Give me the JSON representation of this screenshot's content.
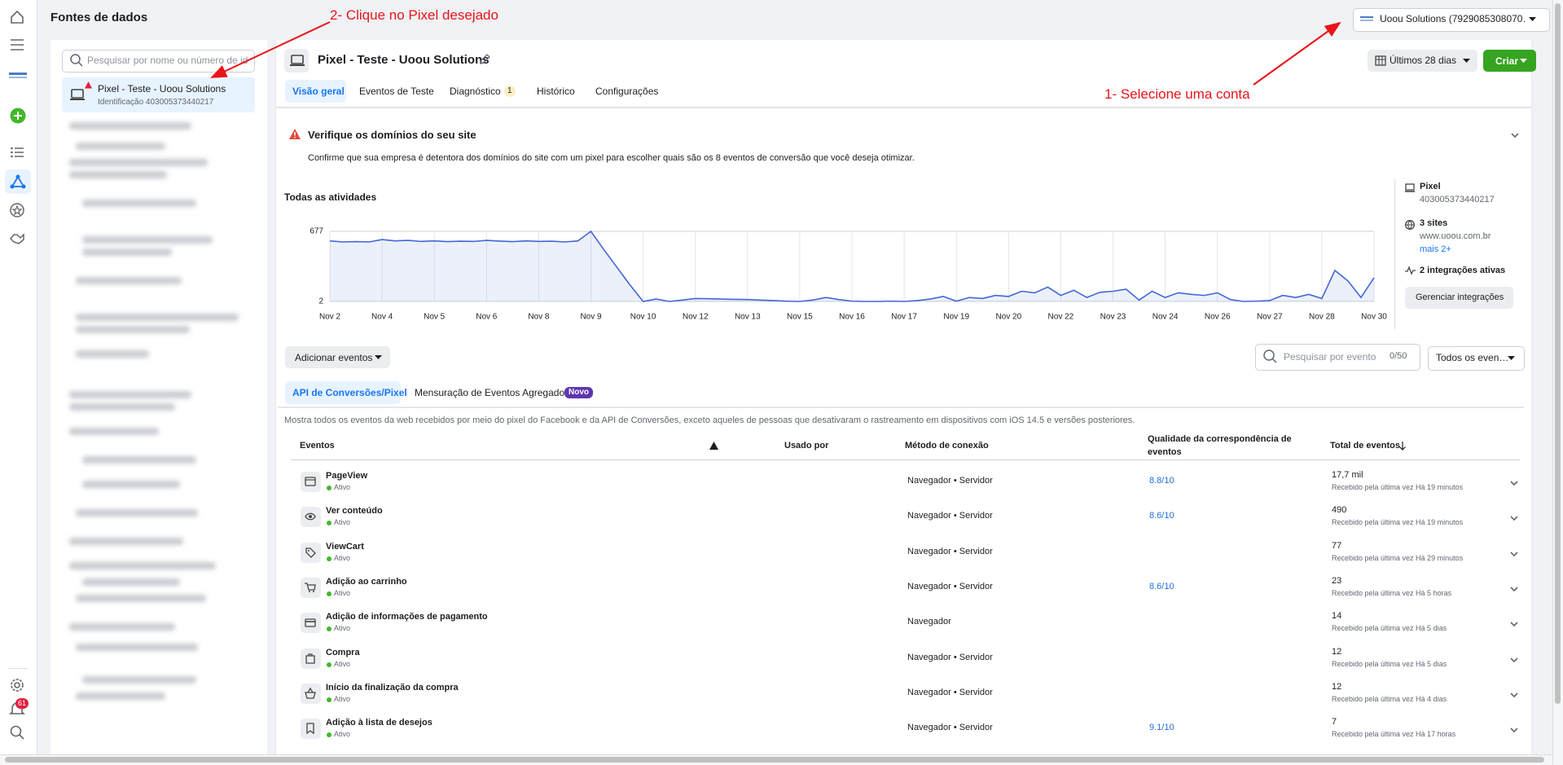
{
  "rail": {
    "notifications": 61
  },
  "sidebar": {
    "title": "Fontes de dados",
    "search_placeholder": "Pesquisar por nome ou número de id",
    "items": [
      {
        "name": "Pixel - Teste - Uoou Solutions",
        "id": "Identificação 403005373440217"
      }
    ]
  },
  "annotations": {
    "step_two": "2- Clique no Pixel desejado",
    "step_one": "1- Selecione uma conta"
  },
  "header": {
    "account": "Uoou Solutions (7929085308070…",
    "pixel_title": "Pixel - Teste - Uoou Solutions",
    "tabs": [
      "Visão geral",
      "Eventos de Teste",
      "Diagnóstico",
      "Histórico",
      "Configurações"
    ],
    "diagnostic_badge": 1,
    "date_range": "Últimos 28 dias",
    "create": "Criar"
  },
  "warning": {
    "title": "Verifique os domínios do seu site",
    "text": "Confirme que sua empresa é detentora dos domínios do site com um pixel para escolher quais são os 8 eventos de conversão que você deseja otimizar."
  },
  "activity_chart": {
    "type": "line",
    "title": "Todas as atividades",
    "color": "#4267d6",
    "categories": [
      "Nov 2",
      null,
      null,
      null,
      "Nov 4",
      null,
      null,
      null,
      "Nov 5",
      null,
      null,
      null,
      "Nov 6",
      null,
      null,
      null,
      "Nov 8",
      null,
      null,
      null,
      "Nov 9",
      null,
      null,
      null,
      "Nov 10",
      null,
      null,
      null,
      "Nov 12",
      null,
      null,
      null,
      "Nov 13",
      null,
      null,
      null,
      "Nov 15",
      null,
      null,
      null,
      "Nov 16",
      null,
      null,
      null,
      "Nov 17",
      null,
      null,
      null,
      "Nov 19",
      null,
      null,
      null,
      "Nov 20",
      null,
      null,
      null,
      "Nov 22",
      null,
      null,
      null,
      "Nov 23",
      null,
      null,
      null,
      "Nov 24",
      null,
      null,
      null,
      "Nov 26",
      null,
      null,
      null,
      "Nov 27",
      null,
      null,
      null,
      "Nov 28",
      null,
      null,
      null,
      "Nov 30"
    ],
    "values": [
      585,
      575,
      578,
      575,
      598,
      585,
      590,
      580,
      585,
      578,
      582,
      580,
      590,
      583,
      578,
      585,
      580,
      582,
      575,
      585,
      677,
      500,
      330,
      160,
      2,
      25,
      2,
      15,
      30,
      28,
      25,
      22,
      20,
      15,
      10,
      5,
      2,
      15,
      40,
      20,
      5,
      2,
      2,
      5,
      2,
      10,
      25,
      50,
      5,
      40,
      30,
      60,
      50,
      100,
      85,
      140,
      60,
      110,
      40,
      90,
      100,
      120,
      15,
      100,
      40,
      85,
      70,
      60,
      85,
      20,
      2,
      5,
      10,
      60,
      40,
      70,
      30,
      300,
      200,
      40,
      230
    ],
    "ylim": [
      2,
      677
    ],
    "yticks": [
      2,
      677
    ],
    "grid": true
  },
  "details": {
    "pixel_label": "Pixel",
    "pixel_id": "403005373440217",
    "sites": "3 sites",
    "site": "www.uoou.com.br",
    "more": "mais 2+",
    "integrations": "2 integrações ativas",
    "manage": "Gerenciar integrações"
  },
  "events": {
    "add": "Adicionar eventos",
    "search_placeholder": "Pesquisar por evento",
    "search_count": "0/50",
    "filter": "Todos os even…",
    "tabs": [
      "API de Conversões/Pixel",
      "Mensuração de Eventos Agregados"
    ],
    "new_badge": "Novo",
    "description": "Mostra todos os eventos da web recebidos por meio do pixel do Facebook e da API de Conversões, exceto aqueles de pessoas que desativaram o rastreamento em dispositivos com iOS 14.5 e versões posteriores.",
    "columns": [
      "Eventos",
      "Usado por",
      "Método de conexão",
      "Qualidade da correspondência de eventos",
      "Total de eventos"
    ],
    "rows": [
      {
        "name": "PageView",
        "status": "Ativo",
        "method": "Navegador • Servidor",
        "quality": "8.8/10",
        "total": "17,7 mil",
        "last_received": "Recebido pela última vez Há 19 minutos"
      },
      {
        "name": "Ver conteúdo",
        "status": "Ativo",
        "method": "Navegador • Servidor",
        "quality": "8.6/10",
        "total": "490",
        "last_received": "Recebido pela última vez Há 19 minutos"
      },
      {
        "name": "ViewCart",
        "status": "Ativo",
        "method": "Navegador • Servidor",
        "quality": null,
        "total": "77",
        "last_received": "Recebido pela última vez Há 29 minutos"
      },
      {
        "name": "Adição ao carrinho",
        "status": "Ativo",
        "method": "Navegador • Servidor",
        "quality": "8.6/10",
        "total": "23",
        "last_received": "Recebido pela última vez Há 5 horas"
      },
      {
        "name": "Adição de informações de pagamento",
        "status": "Ativo",
        "method": "Navegador",
        "quality": null,
        "total": "14",
        "last_received": "Recebido pela última vez Há 5 dias"
      },
      {
        "name": "Compra",
        "status": "Ativo",
        "method": "Navegador • Servidor",
        "quality": null,
        "total": "12",
        "last_received": "Recebido pela última vez Há 5 dias"
      },
      {
        "name": "Início da finalização da compra",
        "status": "Ativo",
        "method": "Navegador • Servidor",
        "quality": null,
        "total": "12",
        "last_received": "Recebido pela última vez Há 4 dias"
      },
      {
        "name": "Adição à lista de desejos",
        "status": "Ativo",
        "method": "Navegador • Servidor",
        "quality": "9.1/10",
        "total": "7",
        "last_received": "Recebido pela última vez Há 17 horas"
      }
    ]
  }
}
